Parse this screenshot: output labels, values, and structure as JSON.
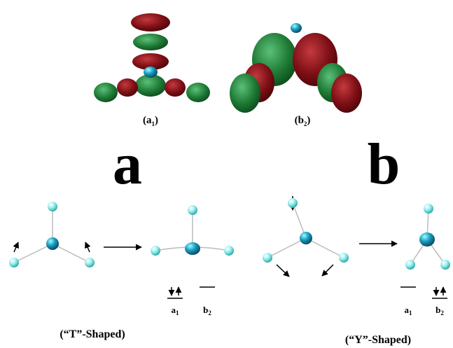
{
  "orbitals": [
    {
      "label": [
        "(a",
        "1",
        ")"
      ]
    },
    {
      "label": [
        "(b",
        "2",
        ")"
      ]
    }
  ],
  "panels": [
    {
      "letter": "a",
      "levels": [
        [
          "a",
          "1"
        ],
        [
          "b",
          "2"
        ]
      ],
      "caption": "(“T”-Shaped)"
    },
    {
      "letter": "b",
      "levels": [
        [
          "a",
          "1"
        ],
        [
          "b",
          "2"
        ]
      ],
      "caption": "(“Y”-Shaped)"
    }
  ]
}
